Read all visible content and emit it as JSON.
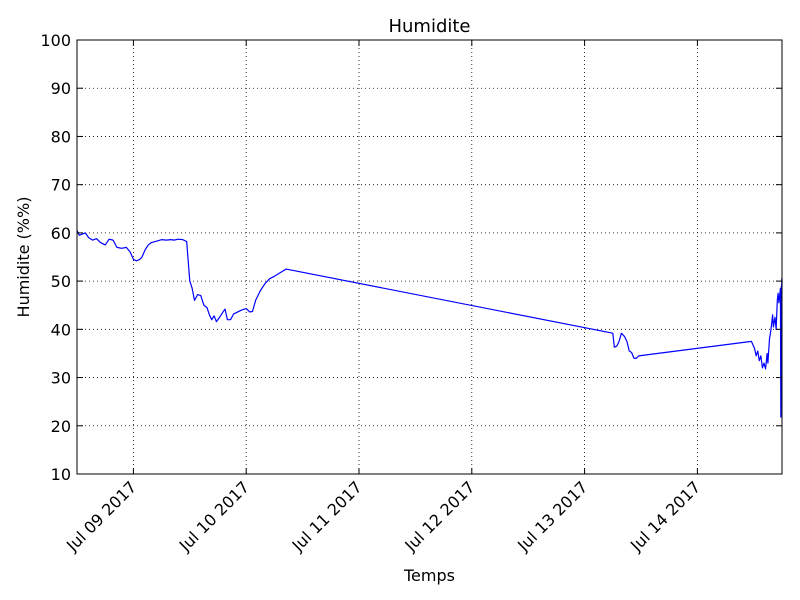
{
  "chart_data": {
    "type": "line",
    "title": "Humidite",
    "xlabel": "Temps",
    "ylabel": "Humidite (%%)",
    "ylim": [
      10,
      100
    ],
    "yticks": [
      10,
      20,
      30,
      40,
      50,
      60,
      70,
      80,
      90,
      100
    ],
    "xlim": [
      "2017-07-08 12:00",
      "2017-07-14 18:00"
    ],
    "xticks": [
      {
        "value": "2017-07-09 00:00",
        "label": "Jul 09 2017"
      },
      {
        "value": "2017-07-10 00:00",
        "label": "Jul 10 2017"
      },
      {
        "value": "2017-07-11 00:00",
        "label": "Jul 11 2017"
      },
      {
        "value": "2017-07-12 00:00",
        "label": "Jul 12 2017"
      },
      {
        "value": "2017-07-13 00:00",
        "label": "Jul 13 2017"
      },
      {
        "value": "2017-07-14 00:00",
        "label": "Jul 14 2017"
      }
    ],
    "grid": true,
    "series": [
      {
        "color": "#0000ff",
        "points": [
          [
            "2017-07-08 12:00",
            60.5
          ],
          [
            "2017-07-08 12:30",
            59.5
          ],
          [
            "2017-07-08 13:15",
            59.8
          ],
          [
            "2017-07-08 13:45",
            60.0
          ],
          [
            "2017-07-08 14:30",
            59.0
          ],
          [
            "2017-07-08 15:20",
            58.5
          ],
          [
            "2017-07-08 16:10",
            58.8
          ],
          [
            "2017-07-08 17:00",
            58.0
          ],
          [
            "2017-07-08 18:00",
            57.5
          ],
          [
            "2017-07-08 18:50",
            58.7
          ],
          [
            "2017-07-08 19:40",
            58.5
          ],
          [
            "2017-07-08 20:30",
            57.0
          ],
          [
            "2017-07-08 21:30",
            56.8
          ],
          [
            "2017-07-08 22:30",
            57.0
          ],
          [
            "2017-07-08 23:20",
            56.0
          ],
          [
            "2017-07-09 00:00",
            54.5
          ],
          [
            "2017-07-09 00:40",
            54.2
          ],
          [
            "2017-07-09 01:20",
            54.5
          ],
          [
            "2017-07-09 01:50",
            55.0
          ],
          [
            "2017-07-09 02:30",
            56.5
          ],
          [
            "2017-07-09 03:10",
            57.5
          ],
          [
            "2017-07-09 03:50",
            58.0
          ],
          [
            "2017-07-09 05:00",
            58.3
          ],
          [
            "2017-07-09 06:00",
            58.6
          ],
          [
            "2017-07-09 07:00",
            58.5
          ],
          [
            "2017-07-09 08:00",
            58.6
          ],
          [
            "2017-07-09 08:40",
            58.5
          ],
          [
            "2017-07-09 09:30",
            58.7
          ],
          [
            "2017-07-09 10:30",
            58.6
          ],
          [
            "2017-07-09 11:20",
            58.2
          ],
          [
            "2017-07-09 12:00",
            50.0
          ],
          [
            "2017-07-09 12:30",
            48.5
          ],
          [
            "2017-07-09 13:00",
            46.0
          ],
          [
            "2017-07-09 13:40",
            47.2
          ],
          [
            "2017-07-09 14:20",
            47.0
          ],
          [
            "2017-07-09 15:00",
            45.0
          ],
          [
            "2017-07-09 15:40",
            44.5
          ],
          [
            "2017-07-09 16:10",
            43.0
          ],
          [
            "2017-07-09 16:40",
            42.0
          ],
          [
            "2017-07-09 17:10",
            42.8
          ],
          [
            "2017-07-09 17:40",
            41.6
          ],
          [
            "2017-07-09 18:20",
            42.5
          ],
          [
            "2017-07-09 19:00",
            43.5
          ],
          [
            "2017-07-09 19:30",
            44.2
          ],
          [
            "2017-07-09 20:00",
            42.0
          ],
          [
            "2017-07-09 20:40",
            42.0
          ],
          [
            "2017-07-09 21:20",
            43.2
          ],
          [
            "2017-07-09 22:00",
            43.5
          ],
          [
            "2017-07-09 23:00",
            44.0
          ],
          [
            "2017-07-10 00:00",
            44.3
          ],
          [
            "2017-07-10 00:45",
            43.6
          ],
          [
            "2017-07-10 01:20",
            43.7
          ],
          [
            "2017-07-10 02:00",
            46.0
          ],
          [
            "2017-07-10 03:00",
            48.0
          ],
          [
            "2017-07-10 04:00",
            49.5
          ],
          [
            "2017-07-10 05:00",
            50.5
          ],
          [
            "2017-07-10 06:00",
            51.0
          ],
          [
            "2017-07-10 07:00",
            51.6
          ],
          [
            "2017-07-10 08:00",
            52.2
          ],
          [
            "2017-07-10 08:30",
            52.5
          ],
          [
            "2017-07-13 06:00",
            39.2
          ],
          [
            "2017-07-13 06:20",
            36.3
          ],
          [
            "2017-07-13 06:50",
            36.5
          ],
          [
            "2017-07-13 07:20",
            37.5
          ],
          [
            "2017-07-13 07:50",
            39.2
          ],
          [
            "2017-07-13 08:30",
            38.5
          ],
          [
            "2017-07-13 09:00",
            37.5
          ],
          [
            "2017-07-13 09:30",
            35.5
          ],
          [
            "2017-07-13 10:00",
            35.2
          ],
          [
            "2017-07-13 10:30",
            34.0
          ],
          [
            "2017-07-13 11:00",
            34.0
          ],
          [
            "2017-07-13 11:30",
            34.5
          ],
          [
            "2017-07-14 11:30",
            37.5
          ],
          [
            "2017-07-14 12:10",
            36.0
          ],
          [
            "2017-07-14 12:30",
            34.5
          ],
          [
            "2017-07-14 12:50",
            35.5
          ],
          [
            "2017-07-14 13:10",
            33.5
          ],
          [
            "2017-07-14 13:30",
            34.5
          ],
          [
            "2017-07-14 13:50",
            32.0
          ],
          [
            "2017-07-14 14:10",
            33.0
          ],
          [
            "2017-07-14 14:30",
            31.8
          ],
          [
            "2017-07-14 14:50",
            35.0
          ],
          [
            "2017-07-14 15:00",
            33.0
          ],
          [
            "2017-07-14 15:20",
            38.0
          ],
          [
            "2017-07-14 15:40",
            40.0
          ],
          [
            "2017-07-14 16:00",
            43.0
          ],
          [
            "2017-07-14 16:10",
            40.5
          ],
          [
            "2017-07-14 16:30",
            42.5
          ],
          [
            "2017-07-14 16:45",
            40.0
          ],
          [
            "2017-07-14 17:00",
            46.0
          ],
          [
            "2017-07-14 17:10",
            47.5
          ],
          [
            "2017-07-14 17:20",
            45.5
          ],
          [
            "2017-07-14 17:30",
            47.0
          ],
          [
            "2017-07-14 17:40",
            48.5
          ],
          [
            "2017-07-14 17:45",
            21.8
          ],
          [
            "2017-07-14 17:50",
            46.0
          ],
          [
            "2017-07-14 17:52",
            49.0
          ],
          [
            "2017-07-14 17:55",
            47.5
          ],
          [
            "2017-07-14 17:57",
            50.5
          ],
          [
            "2017-07-14 17:59",
            48.0
          ],
          [
            "2017-07-14 18:00",
            50.5
          ]
        ]
      }
    ]
  }
}
